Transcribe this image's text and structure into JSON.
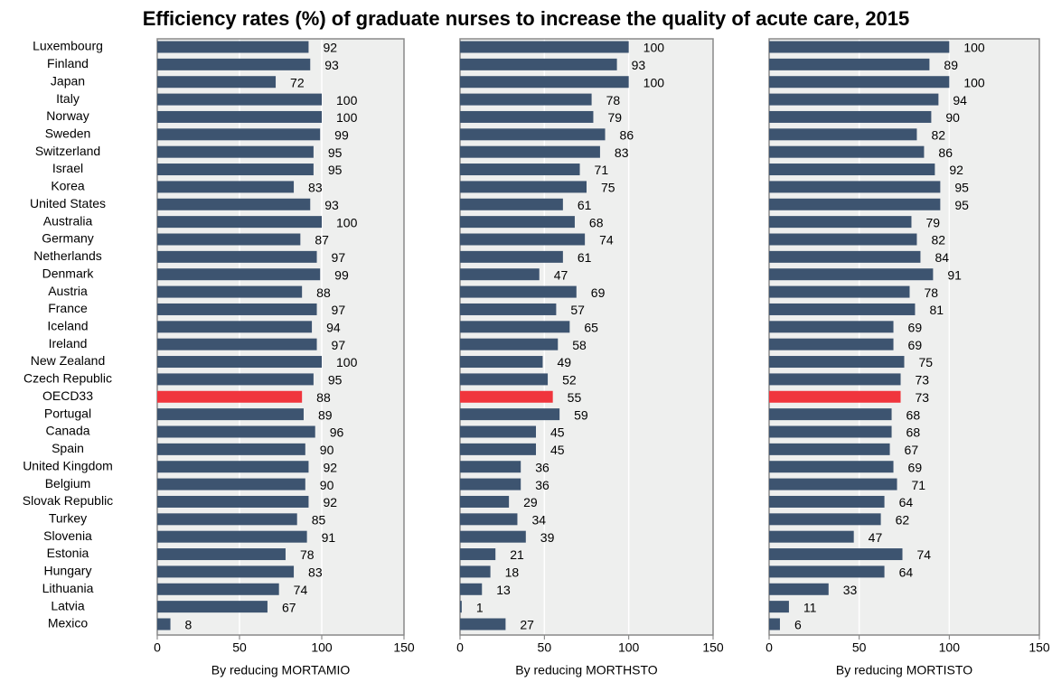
{
  "chart_data": [
    {
      "type": "bar",
      "title": "Efficiency rates (%) of graduate nurses to increase the quality of acute care, 2015",
      "categories": [
        "Luxembourg",
        "Finland",
        "Japan",
        "Italy",
        "Norway",
        "Sweden",
        "Switzerland",
        "Israel",
        "Korea",
        "United States",
        "Australia",
        "Germany",
        "Netherlands",
        "Denmark",
        "Austria",
        "France",
        "Iceland",
        "Ireland",
        "New Zealand",
        "Czech Republic",
        "OECD33",
        "Portugal",
        "Canada",
        "Spain",
        "United Kingdom",
        "Belgium",
        "Slovak Republic",
        "Turkey",
        "Slovenia",
        "Estonia",
        "Hungary",
        "Lithuania",
        "Latvia",
        "Mexico"
      ],
      "color": "#3d5470",
      "highlight": {
        "index": 20,
        "color": "#f0353d"
      },
      "grid": true,
      "xlabel": "By reducing MORTAMIO",
      "values": [
        92,
        93,
        72,
        100,
        100,
        99,
        95,
        95,
        83,
        93,
        100,
        87,
        97,
        99,
        88,
        97,
        94,
        97,
        100,
        95,
        88,
        89,
        96,
        90,
        92,
        90,
        92,
        85,
        91,
        78,
        83,
        74,
        67,
        8
      ],
      "xlim": [
        0,
        150
      ],
      "xticks": [
        0,
        50,
        100,
        150
      ]
    },
    {
      "type": "bar",
      "xlabel": "By reducing MORTHSTO",
      "values": [
        100,
        93,
        100,
        78,
        79,
        86,
        83,
        71,
        75,
        61,
        68,
        74,
        61,
        47,
        69,
        57,
        65,
        58,
        49,
        52,
        55,
        59,
        45,
        45,
        36,
        36,
        29,
        34,
        39,
        21,
        18,
        13,
        1,
        27
      ],
      "xlim": [
        0,
        150
      ],
      "xticks": [
        0,
        50,
        100,
        150
      ]
    },
    {
      "type": "bar",
      "xlabel": "By reducing MORTISTO",
      "values": [
        100,
        89,
        100,
        94,
        90,
        82,
        86,
        92,
        95,
        95,
        79,
        82,
        84,
        91,
        78,
        81,
        69,
        69,
        75,
        73,
        73,
        68,
        68,
        67,
        69,
        71,
        64,
        62,
        47,
        74,
        64,
        33,
        11,
        6
      ],
      "xlim": [
        0,
        150
      ],
      "xticks": [
        0,
        50,
        100,
        150
      ]
    }
  ]
}
